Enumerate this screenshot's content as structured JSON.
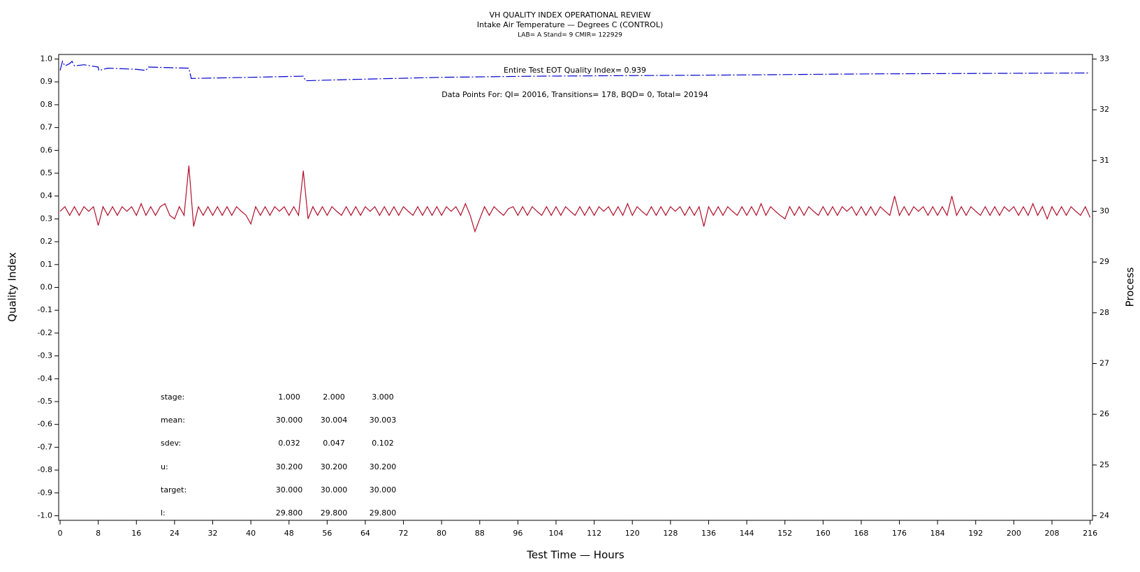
{
  "chart_data": {
    "type": "line",
    "title": "VH QUALITY INDEX OPERATIONAL REVIEW",
    "subtitle": "Intake Air Temperature — Degrees C (CONTROL)",
    "caption": "LAB= A Stand= 9 CMIR= 122929",
    "xlabel": "Test Time — Hours",
    "ylabel": "Quality Index",
    "y2label": "Process",
    "annotations": [
      "Entire Test EOT Quality Index=   0.939",
      "Data Points For: QI= 20016, Transitions=   178, BQD=    0, Total= 20194"
    ],
    "table": {
      "rows": [
        [
          "stage:",
          "1.000",
          "2.000",
          "3.000"
        ],
        [
          "mean:",
          "30.000",
          "30.004",
          "30.003"
        ],
        [
          "sdev:",
          "0.032",
          "0.047",
          "0.102"
        ],
        [
          "u:",
          "30.200",
          "30.200",
          "30.200"
        ],
        [
          "target:",
          "30.000",
          "30.000",
          "30.000"
        ],
        [
          "l:",
          "29.800",
          "29.800",
          "29.800"
        ]
      ]
    },
    "xlim": [
      -0.3,
      216.5
    ],
    "xticks": [
      0,
      8,
      16,
      24,
      32,
      40,
      48,
      56,
      64,
      72,
      80,
      88,
      96,
      104,
      112,
      120,
      128,
      136,
      144,
      152,
      160,
      168,
      176,
      184,
      192,
      200,
      208,
      216
    ],
    "ylim": [
      -1.02,
      1.02
    ],
    "yticks": [
      {
        "value": 1,
        "label": "1.0"
      },
      0.9,
      0.8,
      0.7,
      0.6,
      0.5,
      0.4,
      0.3,
      0.2,
      0.1,
      {
        "value": 0,
        "label": "0.0"
      },
      -0.1,
      -0.2,
      -0.3,
      -0.4,
      -0.5,
      -0.6,
      -0.7,
      -0.8,
      -0.9,
      {
        "value": -1,
        "label": "-1.0"
      }
    ],
    "y2lim": [
      23.91,
      33.09
    ],
    "y2ticks": [
      24,
      25,
      26,
      27,
      28,
      29,
      30,
      31,
      32,
      33
    ],
    "series": [
      {
        "color": "#0000cc",
        "axis": "y",
        "x": [
          0,
          0.5,
          1,
          2,
          2.5,
          3,
          5,
          8,
          8.1,
          10,
          16,
          18,
          18.5,
          27,
          27.5,
          40,
          51,
          51.5,
          60,
          80,
          100,
          140,
          170,
          216
        ],
        "values": [
          0.95,
          0.99,
          0.97,
          0.98,
          0.99,
          0.97,
          0.975,
          0.965,
          0.95,
          0.96,
          0.955,
          0.95,
          0.965,
          0.96,
          0.915,
          0.92,
          0.925,
          0.905,
          0.91,
          0.92,
          0.925,
          0.93,
          0.935,
          0.939
        ]
      },
      {
        "color": "#b0102a",
        "axis": "y2",
        "x": [
          0,
          1,
          2,
          3,
          4,
          5,
          6,
          7,
          8,
          9,
          10,
          11,
          12,
          13,
          14,
          15,
          16,
          17,
          18,
          19,
          20,
          21,
          22,
          23,
          24,
          25,
          26,
          27,
          28,
          29,
          30,
          31,
          32,
          33,
          34,
          35,
          36,
          37,
          38,
          39,
          40,
          41,
          42,
          43,
          44,
          45,
          46,
          47,
          48,
          49,
          50,
          51,
          52,
          53,
          54,
          55,
          56,
          57,
          58,
          59,
          60,
          61,
          62,
          63,
          64,
          65,
          66,
          67,
          68,
          69,
          70,
          71,
          72,
          73,
          74,
          75,
          76,
          77,
          78,
          79,
          80,
          81,
          82,
          83,
          84,
          85,
          86,
          87,
          88,
          89,
          90,
          91,
          92,
          93,
          94,
          95,
          96,
          97,
          98,
          99,
          100,
          101,
          102,
          103,
          104,
          105,
          106,
          107,
          108,
          109,
          110,
          111,
          112,
          113,
          114,
          115,
          116,
          117,
          118,
          119,
          120,
          121,
          122,
          123,
          124,
          125,
          126,
          127,
          128,
          129,
          130,
          131,
          132,
          133,
          134,
          135,
          136,
          137,
          138,
          139,
          140,
          141,
          142,
          143,
          144,
          145,
          146,
          147,
          148,
          149,
          150,
          151,
          152,
          153,
          154,
          155,
          156,
          157,
          158,
          159,
          160,
          161,
          162,
          163,
          164,
          165,
          166,
          167,
          168,
          169,
          170,
          171,
          172,
          173,
          174,
          175,
          176,
          177,
          178,
          179,
          180,
          181,
          182,
          183,
          184,
          185,
          186,
          187,
          188,
          189,
          190,
          191,
          192,
          193,
          194,
          195,
          196,
          197,
          198,
          199,
          200,
          201,
          202,
          203,
          204,
          205,
          206,
          207,
          208,
          209,
          210,
          211,
          212,
          213,
          214,
          215,
          216
        ],
        "values": [
          30.0,
          30.09,
          29.92,
          30.09,
          29.92,
          30.09,
          30.0,
          30.09,
          29.72,
          30.09,
          29.92,
          30.09,
          29.92,
          30.09,
          30.0,
          30.09,
          29.92,
          30.15,
          29.92,
          30.09,
          29.92,
          30.09,
          30.15,
          29.92,
          29.85,
          30.09,
          29.92,
          30.9,
          29.7,
          30.09,
          29.92,
          30.09,
          29.92,
          30.09,
          29.92,
          30.09,
          29.92,
          30.09,
          30.0,
          29.92,
          29.75,
          30.09,
          29.92,
          30.09,
          29.92,
          30.09,
          30.0,
          30.09,
          29.92,
          30.09,
          29.92,
          30.8,
          29.85,
          30.09,
          29.92,
          30.09,
          29.92,
          30.09,
          30.0,
          29.92,
          30.09,
          29.92,
          30.09,
          29.92,
          30.09,
          30.0,
          30.09,
          29.92,
          30.09,
          29.92,
          30.09,
          29.92,
          30.09,
          30.0,
          29.92,
          30.09,
          29.92,
          30.09,
          29.92,
          30.09,
          29.92,
          30.09,
          30.0,
          30.09,
          29.92,
          30.15,
          29.92,
          29.6,
          29.85,
          30.09,
          29.92,
          30.09,
          30.0,
          29.92,
          30.05,
          30.09,
          29.92,
          30.09,
          29.92,
          30.09,
          30.0,
          29.92,
          30.09,
          29.92,
          30.09,
          29.92,
          30.09,
          30.0,
          29.92,
          30.09,
          29.92,
          30.09,
          29.92,
          30.09,
          30.0,
          30.09,
          29.92,
          30.09,
          29.92,
          30.15,
          29.92,
          30.09,
          30.0,
          29.92,
          30.09,
          29.92,
          30.09,
          29.92,
          30.09,
          30.0,
          30.09,
          29.92,
          30.09,
          29.92,
          30.09,
          29.7,
          30.09,
          29.92,
          30.09,
          29.92,
          30.09,
          30.0,
          29.92,
          30.09,
          29.92,
          30.09,
          29.92,
          30.15,
          29.92,
          30.09,
          30.0,
          29.92,
          29.85,
          30.09,
          29.92,
          30.09,
          29.92,
          30.09,
          30.0,
          29.92,
          30.09,
          29.92,
          30.09,
          29.92,
          30.09,
          30.0,
          30.09,
          29.92,
          30.09,
          29.92,
          30.09,
          29.92,
          30.09,
          30.0,
          29.92,
          30.3,
          29.92,
          30.09,
          29.92,
          30.09,
          30.0,
          30.09,
          29.92,
          30.09,
          29.92,
          30.09,
          29.92,
          30.3,
          29.92,
          30.09,
          29.92,
          30.09,
          30.0,
          29.92,
          30.09,
          29.92,
          30.09,
          29.92,
          30.09,
          30.0,
          30.09,
          29.92,
          30.09,
          29.92,
          30.15,
          29.92,
          30.09,
          29.85,
          30.09,
          29.92,
          30.09,
          29.92,
          30.09,
          30.0,
          29.92,
          30.09,
          29.88
        ]
      }
    ]
  }
}
